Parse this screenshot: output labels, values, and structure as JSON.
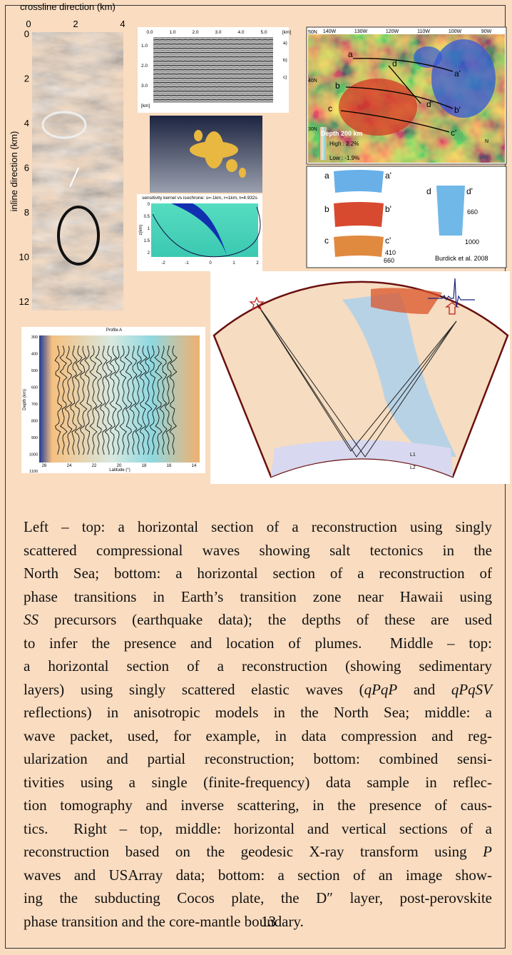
{
  "figures": {
    "seismic_slice": {
      "x_axis_title": "crossline direction (km)",
      "x_ticks": [
        "0",
        "2",
        "4"
      ],
      "y_axis_title": "inline direction (km)",
      "y_ticks": [
        "0",
        "2",
        "4",
        "6",
        "8",
        "10",
        "12"
      ]
    },
    "sedimentary_section": {
      "x_ticks": [
        "0.0",
        "1.0",
        "2.0",
        "3.0",
        "4.0",
        "5.0",
        "[km]"
      ],
      "y_ticks": [
        "1.0",
        "2.0",
        "3.0",
        "[km]"
      ],
      "markers": [
        "a)",
        "b)",
        "c)"
      ]
    },
    "sensitivity_kernel": {
      "title": "sensitivity kernel vs isochrone: s=-1km, r=1km, t=4.932s",
      "x_ticks": [
        "-2",
        "-1",
        "0",
        "1",
        "2"
      ],
      "y_ticks": [
        "0",
        "0.5",
        "1",
        "1.5",
        "2"
      ],
      "y_axis_title": "z(km)"
    },
    "map": {
      "lon_labels": [
        "140W",
        "130W",
        "120W",
        "110W",
        "100W",
        "90W"
      ],
      "lat_labels": [
        "50N",
        "40N",
        "30N"
      ],
      "legend_title": "Depth 200 km",
      "legend_high": "High : 2.2%",
      "legend_low": "Low : -1.9%",
      "profile_labels": [
        "a",
        "a'",
        "b",
        "b'",
        "c",
        "c'",
        "d",
        "d'"
      ],
      "north": "N"
    },
    "cross_sections": {
      "labels": [
        "a",
        "a'",
        "b",
        "b'",
        "c",
        "c'",
        "d",
        "d'"
      ],
      "depth_labels": [
        "410",
        "660",
        "660",
        "1000"
      ],
      "credit": "Burdick et al. 2008"
    },
    "profile": {
      "title": "Profile A",
      "x_axis_title": "Latitude (°)",
      "y_axis_title": "Depth (km)",
      "x_ticks": [
        "26",
        "24",
        "22",
        "20",
        "18",
        "16",
        "14"
      ],
      "y_ticks": [
        "300",
        "400",
        "500",
        "600",
        "700",
        "800",
        "900",
        "1000",
        "1100"
      ]
    },
    "earth_section": {
      "labels": [
        "L1",
        "L2"
      ]
    }
  },
  "caption": {
    "lines": [
      [
        {
          "text": "Left – top: a horizontal section of a reconstruction using singly"
        }
      ],
      [
        {
          "text": "scattered compressional waves showing salt tectonics in the"
        }
      ],
      [
        {
          "text": "North Sea; bottom: a horizontal section of a reconstruction of"
        }
      ],
      [
        {
          "text": "phase transitions in Earth’s transition zone near Hawaii using"
        }
      ],
      [
        {
          "text": "SS",
          "italic": true
        },
        {
          "text": " precursors (earthquake data); the depths of these are used"
        }
      ],
      [
        {
          "text": "to infer the presence and location of plumes.  Middle – top:"
        }
      ],
      [
        {
          "text": "a horizontal section of a reconstruction (showing sedimentary"
        }
      ],
      [
        {
          "text": "layers) using singly scattered elastic waves ("
        },
        {
          "text": "qPqP",
          "italic": true
        },
        {
          "text": " and "
        },
        {
          "text": "qPqSV",
          "italic": true
        }
      ],
      [
        {
          "text": "reflections) in anisotropic models in the North Sea; middle: a"
        }
      ],
      [
        {
          "text": "wave packet, used, for example, in data compression and reg-"
        }
      ],
      [
        {
          "text": "ularization and partial reconstruction; bottom: combined sensi-"
        }
      ],
      [
        {
          "text": "tivities using a single (finite-frequency) data sample in reflec-"
        }
      ],
      [
        {
          "text": "tion tomography and inverse scattering, in the presence of caus-"
        }
      ],
      [
        {
          "text": "tics.  Right – top, middle: horizontal and vertical sections of a"
        }
      ],
      [
        {
          "text": "reconstruction based on the geodesic X-ray transform using "
        },
        {
          "text": "P",
          "italic": true
        }
      ],
      [
        {
          "text": "waves and USArray data; bottom: a section of an image show-"
        }
      ],
      [
        {
          "text": "ing the subducting Cocos plate, the D″ layer, post-perovskite"
        }
      ],
      [
        {
          "text": "phase transition and the core-mantle boundary."
        }
      ]
    ]
  },
  "page_number": "13"
}
